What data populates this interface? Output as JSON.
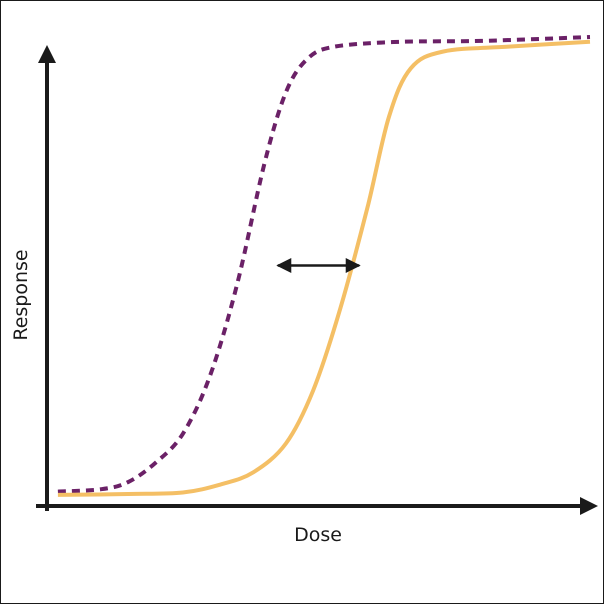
{
  "chart_data": {
    "type": "line",
    "title": "",
    "xlabel": "Dose",
    "ylabel": "Response",
    "xlim": [
      0,
      10
    ],
    "ylim": [
      0,
      1
    ],
    "grid": false,
    "legend": "none",
    "series": [
      {
        "style": "dashed",
        "color": "#6b2167",
        "points": [
          {
            "x": 0.2,
            "y": 0.03
          },
          {
            "x": 1.0,
            "y": 0.035
          },
          {
            "x": 1.5,
            "y": 0.05
          },
          {
            "x": 2.0,
            "y": 0.09
          },
          {
            "x": 2.5,
            "y": 0.15
          },
          {
            "x": 3.0,
            "y": 0.27
          },
          {
            "x": 3.5,
            "y": 0.46
          },
          {
            "x": 4.0,
            "y": 0.71
          },
          {
            "x": 4.4,
            "y": 0.86
          },
          {
            "x": 4.8,
            "y": 0.93
          },
          {
            "x": 5.3,
            "y": 0.955
          },
          {
            "x": 6.5,
            "y": 0.965
          },
          {
            "x": 8.0,
            "y": 0.967
          },
          {
            "x": 10.0,
            "y": 0.975
          }
        ]
      },
      {
        "style": "solid",
        "color": "#f4bf65",
        "points": [
          {
            "x": 0.2,
            "y": 0.023
          },
          {
            "x": 1.5,
            "y": 0.025
          },
          {
            "x": 2.5,
            "y": 0.028
          },
          {
            "x": 3.2,
            "y": 0.045
          },
          {
            "x": 3.8,
            "y": 0.07
          },
          {
            "x": 4.4,
            "y": 0.13
          },
          {
            "x": 4.9,
            "y": 0.24
          },
          {
            "x": 5.4,
            "y": 0.41
          },
          {
            "x": 5.9,
            "y": 0.62
          },
          {
            "x": 6.3,
            "y": 0.81
          },
          {
            "x": 6.7,
            "y": 0.91
          },
          {
            "x": 7.3,
            "y": 0.945
          },
          {
            "x": 8.5,
            "y": 0.955
          },
          {
            "x": 10.0,
            "y": 0.965
          }
        ]
      }
    ],
    "annotations": [
      {
        "type": "double-arrow",
        "x1": 4.25,
        "x2": 5.75,
        "y": 0.5
      }
    ]
  }
}
